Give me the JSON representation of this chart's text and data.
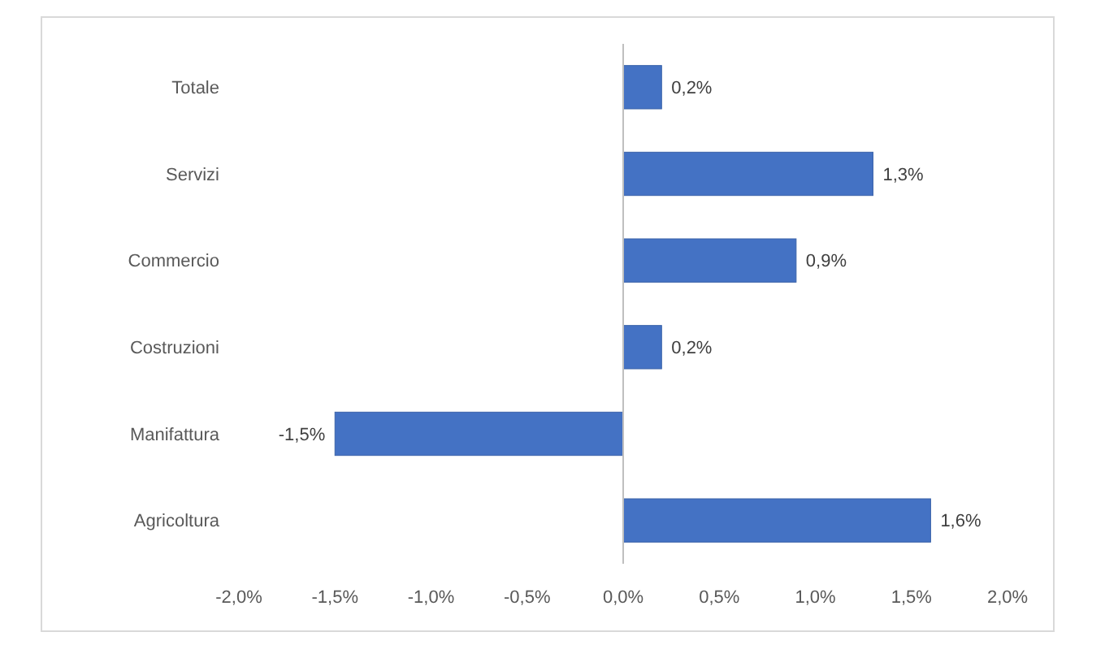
{
  "chart_data": {
    "type": "bar",
    "orientation": "horizontal",
    "categories": [
      "Totale",
      "Servizi",
      "Commercio",
      "Costruzioni",
      "Manifattura",
      "Agricoltura"
    ],
    "values": [
      0.2,
      1.3,
      0.9,
      0.2,
      -1.5,
      1.6
    ],
    "value_labels": [
      "0,2%",
      "1,3%",
      "0,9%",
      "0,2%",
      "-1,5%",
      "1,6%"
    ],
    "color": "#4472c4",
    "xlim": [
      -2,
      2
    ],
    "xticks": [
      {
        "value": -2,
        "label": "-2,0%"
      },
      {
        "value": -1.5,
        "label": "-1,5%"
      },
      {
        "value": -1,
        "label": "-1,0%"
      },
      {
        "value": -0.5,
        "label": "-0,5%"
      },
      {
        "value": 0,
        "label": "0,0%"
      },
      {
        "value": 0.5,
        "label": "0,5%"
      },
      {
        "value": 1,
        "label": "1,0%"
      },
      {
        "value": 1.5,
        "label": "1,5%"
      },
      {
        "value": 2,
        "label": "2,0%"
      }
    ]
  }
}
